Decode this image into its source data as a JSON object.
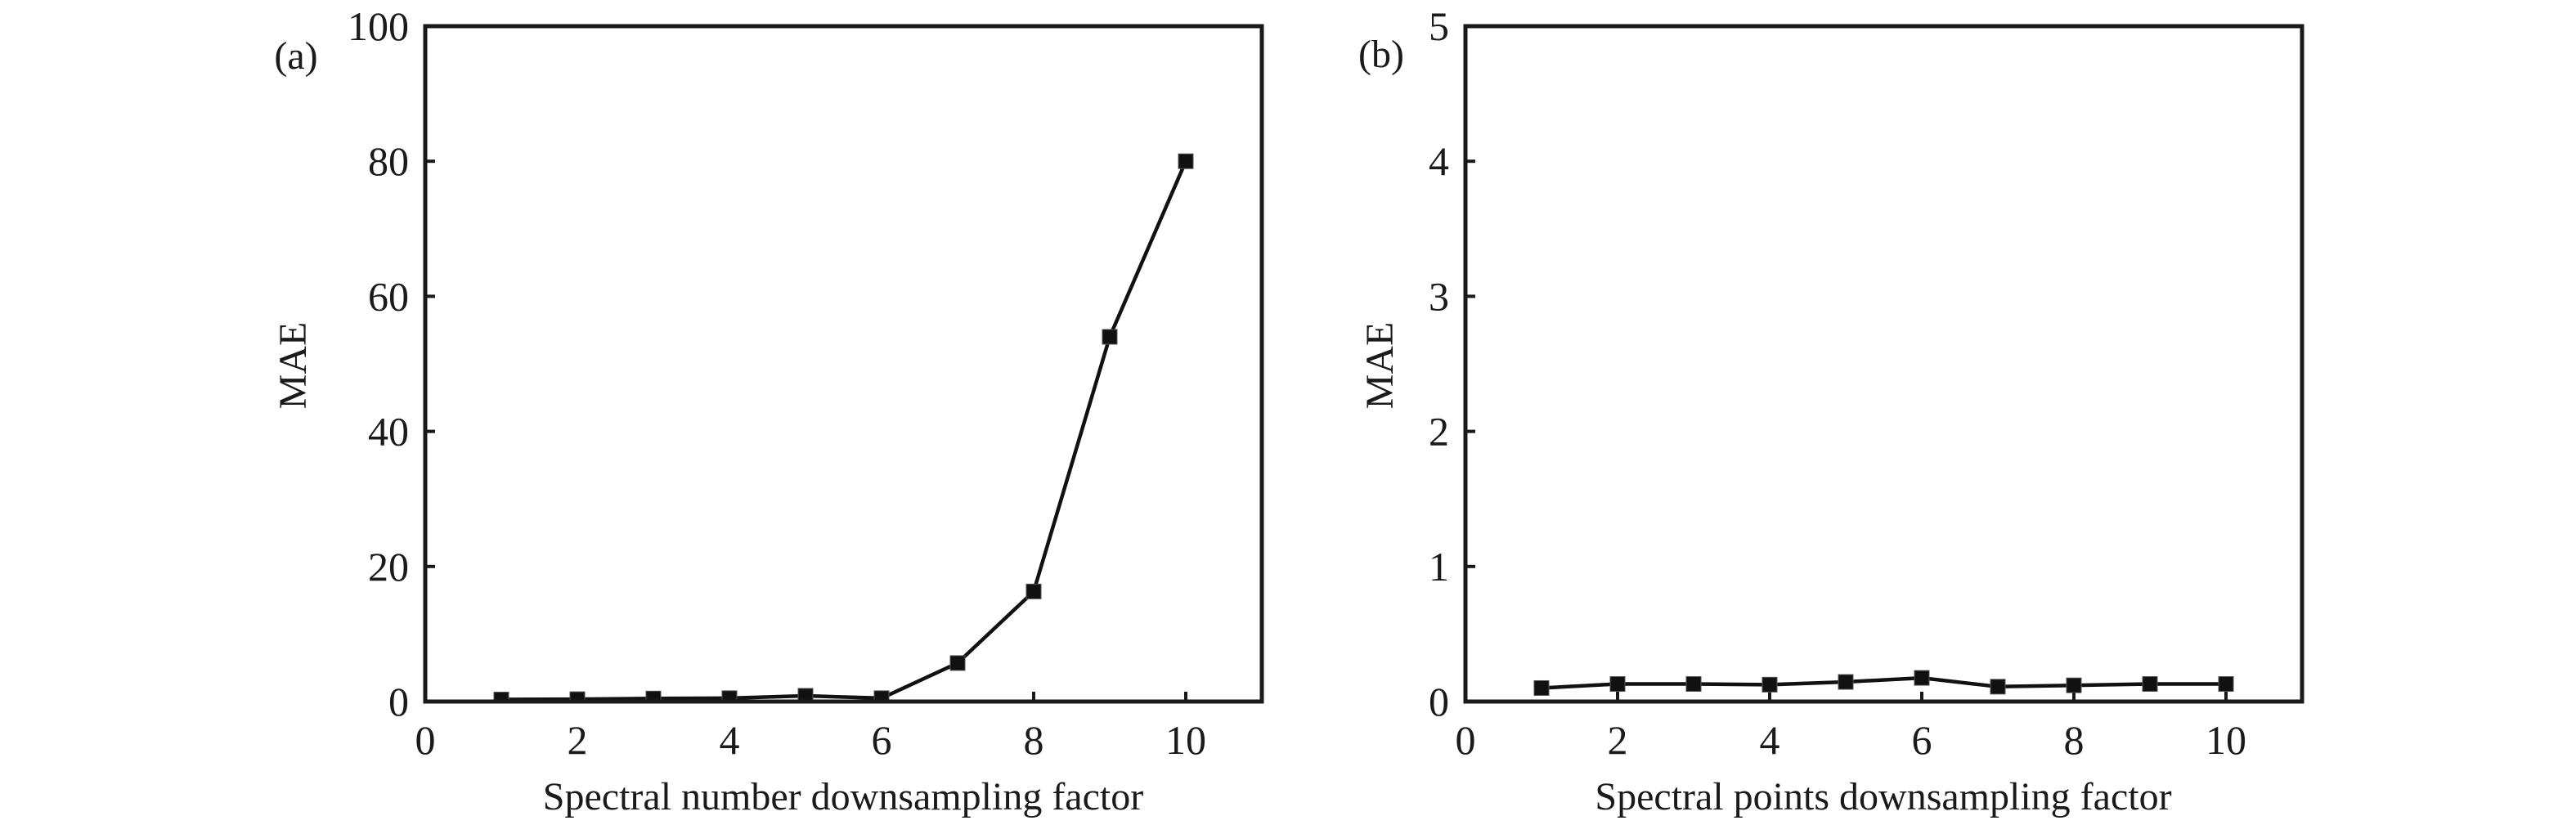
{
  "chart_data": [
    {
      "type": "line",
      "panel_label": "(a)",
      "xlabel": "Spectral number downsampling factor",
      "ylabel": "MAE",
      "xlim": [
        0,
        11
      ],
      "ylim": [
        0,
        100
      ],
      "xticks": [
        0,
        2,
        4,
        6,
        8,
        10
      ],
      "yticks": [
        0,
        20,
        40,
        60,
        80,
        100
      ],
      "grid": false,
      "marker": "square",
      "series": [
        {
          "name": "MAE",
          "x": [
            1,
            2,
            3,
            4,
            5,
            6,
            7,
            8,
            9,
            10
          ],
          "y": [
            0.3,
            0.35,
            0.45,
            0.5,
            0.85,
            0.5,
            5.7,
            16.3,
            54.0,
            80.0
          ]
        }
      ],
      "colors": {
        "line": "#111111",
        "marker": "#111111",
        "axis": "#1a1a1a"
      }
    },
    {
      "type": "line",
      "panel_label": "(b)",
      "xlabel": "Spectral points downsampling factor",
      "ylabel": "MAE",
      "xlim": [
        0,
        11
      ],
      "ylim": [
        0,
        5
      ],
      "xticks": [
        0,
        2,
        4,
        6,
        8,
        10
      ],
      "yticks": [
        0,
        1,
        2,
        3,
        4,
        5
      ],
      "grid": false,
      "marker": "square",
      "series": [
        {
          "name": "MAE",
          "x": [
            1,
            2,
            3,
            4,
            5,
            6,
            7,
            8,
            9,
            10
          ],
          "y": [
            0.1,
            0.13,
            0.13,
            0.125,
            0.145,
            0.175,
            0.11,
            0.12,
            0.13,
            0.13
          ]
        }
      ],
      "colors": {
        "line": "#111111",
        "marker": "#111111",
        "axis": "#1a1a1a"
      }
    }
  ]
}
